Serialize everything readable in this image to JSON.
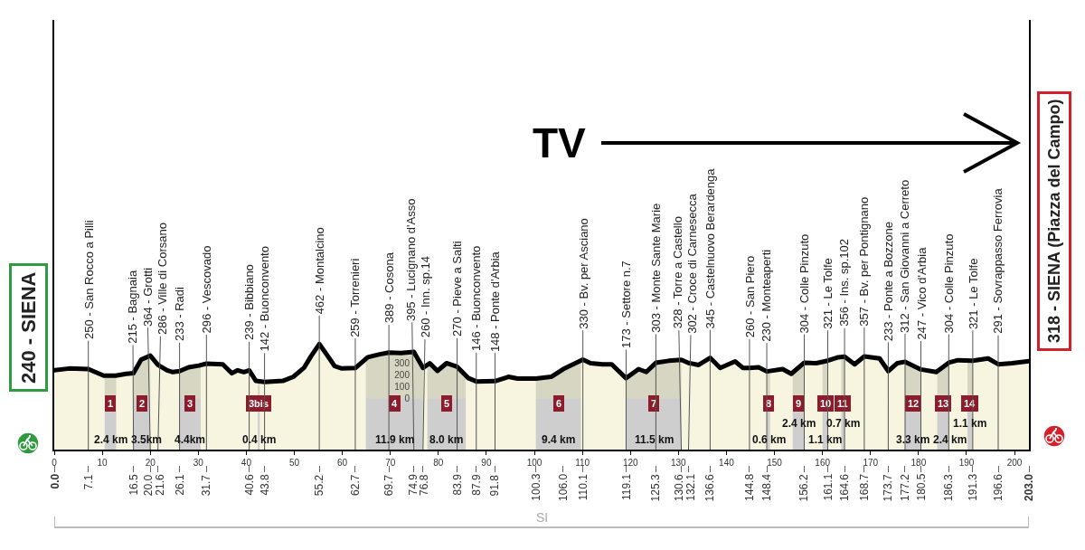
{
  "chart_data": {
    "type": "area",
    "color": "#000000",
    "x": [
      0,
      3.1,
      7.1,
      10.3,
      12.8,
      15.0,
      16.5,
      18.1,
      20.0,
      21.6,
      23.5,
      24.7,
      26.1,
      28.0,
      30.1,
      31.7,
      35.1,
      37.0,
      38.2,
      39.5,
      40.6,
      42.0,
      43.8,
      47.6,
      49.8,
      52.0,
      53.5,
      55.2,
      56.8,
      58.4,
      59.9,
      62.7,
      65.3,
      67.8,
      69.7,
      72.2,
      74.9,
      76.8,
      78.2,
      79.8,
      81.7,
      83.9,
      86.2,
      87.9,
      91.8,
      94.6,
      96.5,
      99.7,
      100.3,
      103.5,
      106.0,
      110.1,
      111.7,
      114.2,
      116.1,
      119.1,
      121.7,
      123.3,
      125.3,
      128.0,
      130.6,
      132.1,
      134.2,
      136.6,
      138.7,
      141.8,
      143.4,
      144.8,
      146.7,
      148.4,
      151.7,
      153.5,
      156.2,
      158.7,
      161.1,
      163.3,
      164.6,
      166.7,
      168.7,
      171.9,
      173.7,
      175.6,
      177.2,
      180.5,
      183.7,
      186.3,
      188.2,
      191.3,
      194.5,
      196.6,
      199.5,
      203.0
    ],
    "values": [
      240,
      255,
      250,
      195,
      195,
      210,
      215,
      330,
      364,
      286,
      240,
      225,
      233,
      265,
      280,
      296,
      290,
      215,
      240,
      225,
      239,
      150,
      142,
      150,
      185,
      260,
      360,
      462,
      370,
      275,
      255,
      259,
      350,
      375,
      389,
      385,
      395,
      260,
      300,
      235,
      300,
      270,
      175,
      146,
      148,
      185,
      170,
      170,
      170,
      185,
      250,
      330,
      300,
      290,
      290,
      173,
      250,
      225,
      303,
      320,
      328,
      302,
      285,
      345,
      260,
      315,
      260,
      260,
      265,
      230,
      250,
      210,
      304,
      300,
      321,
      350,
      356,
      290,
      357,
      340,
      233,
      300,
      312,
      247,
      225,
      304,
      325,
      321,
      340,
      291,
      300,
      318
    ],
    "xlim": [
      0,
      203
    ],
    "xticks": [
      0,
      10,
      20,
      30,
      40,
      50,
      60,
      70,
      80,
      90,
      100,
      110,
      120,
      130,
      140,
      150,
      160,
      170,
      180,
      190,
      200
    ],
    "ylim": [
      -430,
      3200
    ],
    "yticks": [
      0,
      100,
      200,
      300
    ],
    "x2lim": [
      0,
      203
    ],
    "x2ticks": [
      {
        "value": 0,
        "label": "0.0"
      },
      7.1,
      16.5,
      {
        "value": 20,
        "label": "20.0"
      },
      21.6,
      26.1,
      31.7,
      40.6,
      43.8,
      55.2,
      62.7,
      69.7,
      74.9,
      76.8,
      83.9,
      87.9,
      91.8,
      100.3,
      {
        "value": 106,
        "label": "106.0"
      },
      110.1,
      119.1,
      125.3,
      130.6,
      132.1,
      136.6,
      144.8,
      148.4,
      156.2,
      161.1,
      164.6,
      168.7,
      173.7,
      177.2,
      180.5,
      186.3,
      191.3,
      196.6,
      {
        "value": 203,
        "label": "203.0"
      }
    ],
    "bands": [
      {
        "axis": "x",
        "from": 10.5,
        "to": 12.9,
        "label": "1",
        "color": "#c9cacc"
      },
      {
        "axis": "x",
        "from": 16.5,
        "to": 20.0,
        "label": "2",
        "color": "#c9cacc"
      },
      {
        "axis": "x",
        "from": 26.1,
        "to": 30.5,
        "label": "3",
        "color": "#c9cacc"
      },
      {
        "axis": "x",
        "from": 42.4,
        "to": 42.8,
        "label": "3bis",
        "color": "#c9cacc"
      },
      {
        "axis": "x",
        "from": 64.9,
        "to": 76.8,
        "label": "4",
        "color": "#c9cacc"
      },
      {
        "axis": "x",
        "from": 77.7,
        "to": 85.7,
        "label": "5",
        "color": "#c9cacc"
      },
      {
        "axis": "x",
        "from": 100.3,
        "to": 109.7,
        "label": "6",
        "color": "#c9cacc"
      },
      {
        "axis": "x",
        "from": 119.1,
        "to": 130.6,
        "label": "7",
        "color": "#c9cacc"
      },
      {
        "axis": "x",
        "from": 148.5,
        "to": 149.1,
        "label": "8",
        "color": "#c9cacc"
      },
      {
        "axis": "x",
        "from": 153.8,
        "to": 156.2,
        "label": "9",
        "color": "#c9cacc"
      },
      {
        "axis": "x",
        "from": 160.0,
        "to": 161.1,
        "label": "10",
        "color": "#c9cacc"
      },
      {
        "axis": "x",
        "from": 163.9,
        "to": 164.6,
        "label": "11",
        "color": "#c9cacc"
      },
      {
        "axis": "x",
        "from": 177.2,
        "to": 180.5,
        "label": "12",
        "color": "#c9cacc"
      },
      {
        "axis": "x",
        "from": 183.9,
        "to": 186.3,
        "label": "13",
        "color": "#c9cacc"
      },
      {
        "axis": "x",
        "from": 190.2,
        "to": 191.3,
        "label": "14",
        "color": "#c9cacc"
      },
      {
        "axis": "y",
        "from": -430,
        "to": 0,
        "color": "#f7f5e0"
      }
    ],
    "annotations": [
      "240 - SIENA",
      "318 - SIENA (Piazza del Campo)",
      "TV",
      "SI",
      "2.4 km",
      "3.5km",
      "4.4km",
      "0.4 km",
      "11.9 km",
      "8.0 km",
      "9.4 km",
      "11.5 km",
      "0.6 km",
      "2.4 km",
      "1.1 km",
      "0.7 km",
      "3.3 km",
      "2.4 km",
      "1.1 km",
      {
        "text": "250 - San Rocco a Pilli",
        "x": 7.1,
        "y": 250
      },
      {
        "text": "215 - Bagnaia",
        "x": 16.5,
        "y": 215
      },
      {
        "text": "364 - Grotti",
        "x": 20.0,
        "y": 364
      },
      {
        "text": "286 - Ville di Corsano",
        "x": 21.6,
        "y": 286
      },
      {
        "text": "233 - Radi",
        "x": 26.1,
        "y": 233
      },
      {
        "text": "296 - Vescovado",
        "x": 31.7,
        "y": 296
      },
      {
        "text": "239 - Bibbiano",
        "x": 40.6,
        "y": 239
      },
      {
        "text": "142 - Buonconvento",
        "x": 43.8,
        "y": 142
      },
      {
        "text": "462 - Montalcino",
        "x": 55.2,
        "y": 462
      },
      {
        "text": "259 - Torrenieri",
        "x": 62.7,
        "y": 259
      },
      {
        "text": "389 - Cosona",
        "x": 69.7,
        "y": 389
      },
      {
        "text": "395 - Lucignano d'Asso",
        "x": 74.9,
        "y": 395
      },
      {
        "text": "260 - Inn. sp.14",
        "x": 76.8,
        "y": 260
      },
      {
        "text": "270 - Pieve a Salti",
        "x": 83.9,
        "y": 270
      },
      {
        "text": "146 - Buonconvento",
        "x": 87.9,
        "y": 146
      },
      {
        "text": "148 - Ponte d'Arbia",
        "x": 91.8,
        "y": 148
      },
      {
        "text": "330 - Bv. per Asciano",
        "x": 110.1,
        "y": 330
      },
      {
        "text": "173 - Settore n.7",
        "x": 119.1,
        "y": 173
      },
      {
        "text": "303 - Monte Sante Marie",
        "x": 125.3,
        "y": 303
      },
      {
        "text": "328 - Torre a Castello",
        "x": 130.6,
        "y": 328
      },
      {
        "text": "302 - Croce di Carnesecca",
        "x": 132.1,
        "y": 302
      },
      {
        "text": "345 - Castelnuovo Berardenga",
        "x": 136.6,
        "y": 345
      },
      {
        "text": "260 - San Piero",
        "x": 144.8,
        "y": 260
      },
      {
        "text": "230 - Monteaperti",
        "x": 148.4,
        "y": 230
      },
      {
        "text": "304 - Colle Pinzuto",
        "x": 156.2,
        "y": 304
      },
      {
        "text": "321 - Le Tolfe",
        "x": 161.1,
        "y": 321
      },
      {
        "text": "356 - Ins. sp.102",
        "x": 164.6,
        "y": 356
      },
      {
        "text": "357 - Bv. per Pontignano",
        "x": 168.7,
        "y": 357
      },
      {
        "text": "233 - Ponte a Bozzone",
        "x": 173.7,
        "y": 233
      },
      {
        "text": "312 - San Giovanni a Cerreto",
        "x": 177.2,
        "y": 312
      },
      {
        "text": "247 - Vico d'Arbia",
        "x": 180.5,
        "y": 247
      },
      {
        "text": "304 - Colle Pinzuto",
        "x": 186.3,
        "y": 304
      },
      {
        "text": "321 - Le Tolfe",
        "x": 191.3,
        "y": 321
      },
      {
        "text": "291 - Sovrappasso Ferrovia",
        "x": 196.6,
        "y": 291
      }
    ]
  }
}
